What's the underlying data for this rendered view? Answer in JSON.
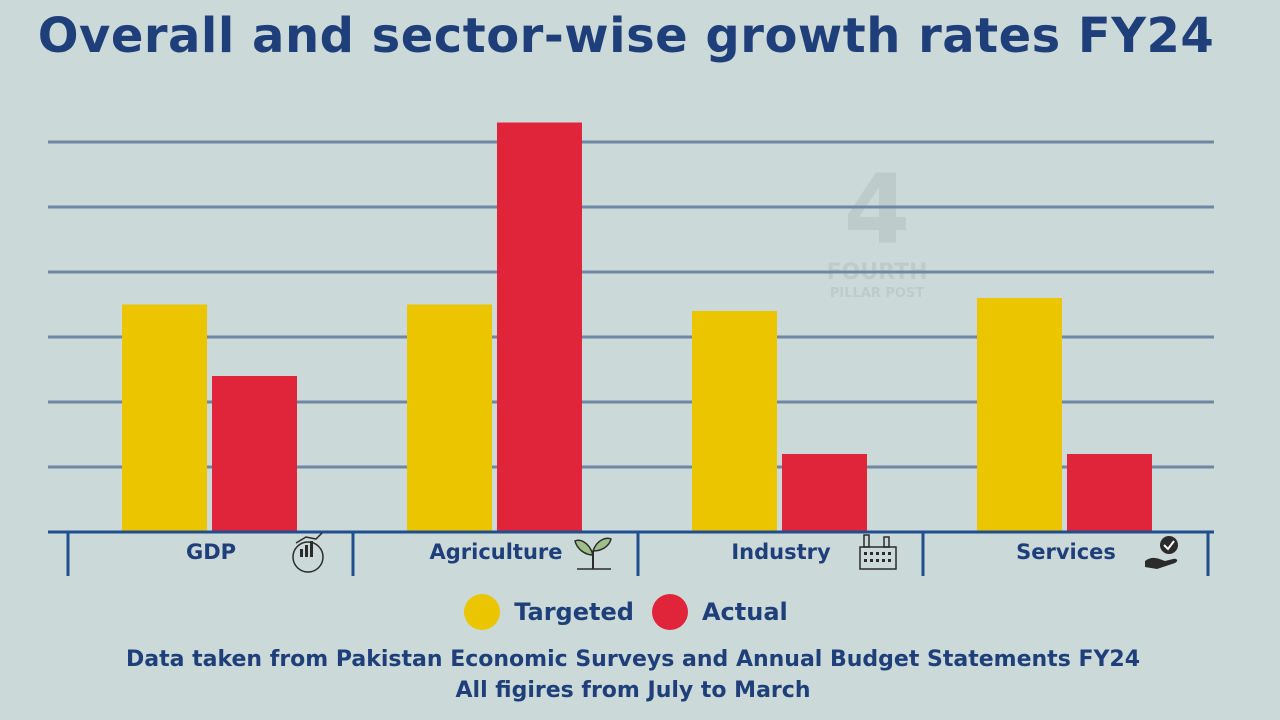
{
  "title": "Overall and sector-wise growth rates FY24",
  "colors": {
    "background": "#cbdad8",
    "title": "#1f3f7a",
    "gridline": "#6f87a3",
    "axis": "#1f4f8f",
    "targeted": "#ebc500",
    "actual": "#e0253b"
  },
  "chart_data": {
    "type": "bar",
    "categories": [
      "GDP",
      "Agriculture",
      "Industry",
      "Services"
    ],
    "category_icons": [
      "globe-growth-icon",
      "seedling-icon",
      "factory-icon",
      "hand-check-icon"
    ],
    "series": [
      {
        "name": "Targeted",
        "values": [
          3.5,
          3.5,
          3.4,
          3.6
        ]
      },
      {
        "name": "Actual",
        "values": [
          2.4,
          6.3,
          1.2,
          1.2
        ]
      }
    ],
    "ylim": [
      0,
      6
    ],
    "grid": true,
    "legend_position": "bottom",
    "y_tick_labels_shown": false
  },
  "legend": [
    {
      "label": "Targeted",
      "color": "#ebc500"
    },
    {
      "label": "Actual",
      "color": "#e0253b"
    }
  ],
  "footnotes": {
    "line1": "Data taken from Pakistan Economic Surveys and Annual Budget Statements FY24",
    "line2": "All figires from July to March"
  },
  "watermark": {
    "mark": "4",
    "line1": "FOURTH",
    "line2": "PILLAR POST"
  }
}
